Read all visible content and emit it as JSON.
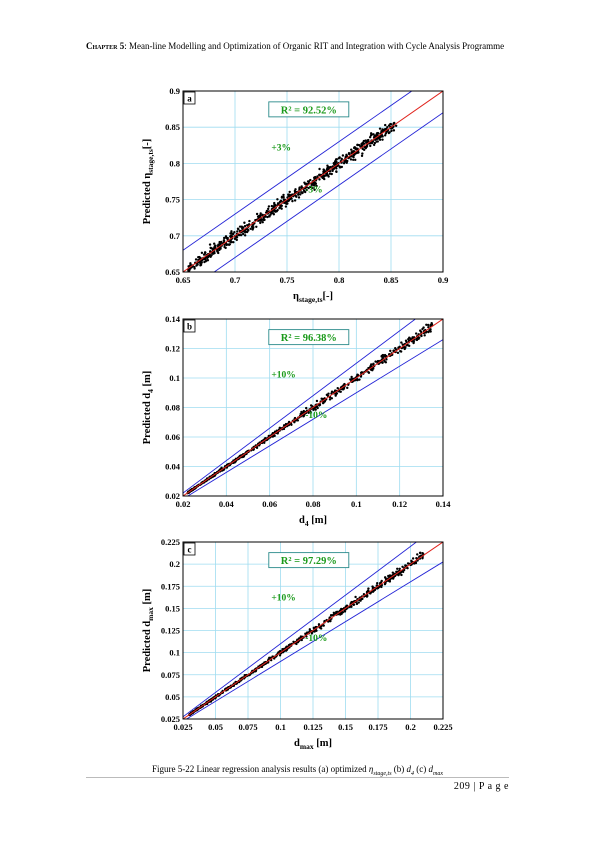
{
  "header": {
    "chapter_label": "Chapter 5",
    "chapter_title": ": Mean-line Modelling and Optimization of Organic RIT and Integration with Cycle Analysis Programme"
  },
  "caption": {
    "prefix": "Figure 5-22 Linear regression analysis results (a) optimized ",
    "sym_a": "η",
    "sub_a": "stage,ts",
    "mid_b": " (b) ",
    "sym_b": "d",
    "sub_b": "4",
    "mid_c": " (c) ",
    "sym_c": "d",
    "sub_c": "max"
  },
  "page_number": "209 | P a g e",
  "colors": {
    "ideal_line": "#e0231c",
    "bound_line": "#2323d6",
    "grid": "#9fdcf0",
    "points": "#000000",
    "annotation": "#1a9a1a"
  },
  "chart_data": [
    {
      "type": "scatter",
      "panel_label": "a",
      "xlabel_main": "η",
      "xlabel_sub": "stage,ts",
      "xlabel_suffix": "[-]",
      "ylabel_main": "Predicted η",
      "ylabel_sub": "stage,ts",
      "ylabel_suffix": "[-]",
      "xlim": [
        0.65,
        0.9
      ],
      "ylim": [
        0.65,
        0.9
      ],
      "xticks": [
        "0.65",
        "0.7",
        "0.75",
        "0.8",
        "0.85",
        "0.9"
      ],
      "yticks": [
        "0.65",
        "0.7",
        "0.75",
        "0.8",
        "0.85",
        "0.9"
      ],
      "r2": "R² = 92.52%",
      "upper_label": "+3%",
      "lower_label": "-3%",
      "band": 0.03,
      "band_mode": "abs",
      "points_x_range": [
        0.655,
        0.855
      ],
      "spread": 0.012,
      "n_points": 700,
      "grid": true
    },
    {
      "type": "scatter",
      "panel_label": "b",
      "xlabel_main": "d",
      "xlabel_sub": "4",
      "xlabel_suffix": " [m]",
      "ylabel_main": "Predicted d",
      "ylabel_sub": "4",
      "ylabel_suffix": " [m]",
      "xlim": [
        0.02,
        0.14
      ],
      "ylim": [
        0.02,
        0.14
      ],
      "xticks": [
        "0.02",
        "0.04",
        "0.06",
        "0.08",
        "0.1",
        "0.12",
        "0.14"
      ],
      "yticks": [
        "0.02",
        "0.04",
        "0.06",
        "0.08",
        "0.1",
        "0.12",
        "0.14"
      ],
      "r2": "R² = 96.38%",
      "upper_label": "+10%",
      "lower_label": "-10%",
      "band": 0.1,
      "band_mode": "rel",
      "points_x_range": [
        0.022,
        0.135
      ],
      "spread": 0.035,
      "n_points": 650,
      "grid": true
    },
    {
      "type": "scatter",
      "panel_label": "c",
      "xlabel_main": "d",
      "xlabel_sub": "max",
      "xlabel_suffix": " [m]",
      "ylabel_main": "Predicted d",
      "ylabel_sub": "max",
      "ylabel_suffix": " [m]",
      "xlim": [
        0.025,
        0.225
      ],
      "ylim": [
        0.025,
        0.225
      ],
      "xticks": [
        "0.025",
        "0.05",
        "0.075",
        "0.1",
        "0.125",
        "0.15",
        "0.175",
        "0.2",
        "0.225"
      ],
      "yticks": [
        "0.025",
        "0.05",
        "0.075",
        "0.1",
        "0.125",
        "0.15",
        "0.175",
        "0.2",
        "0.225"
      ],
      "r2": "R² = 97.29%",
      "upper_label": "+10%",
      "lower_label": "-10%",
      "band": 0.1,
      "band_mode": "rel",
      "points_x_range": [
        0.03,
        0.21
      ],
      "spread": 0.035,
      "n_points": 650,
      "grid": true
    }
  ]
}
